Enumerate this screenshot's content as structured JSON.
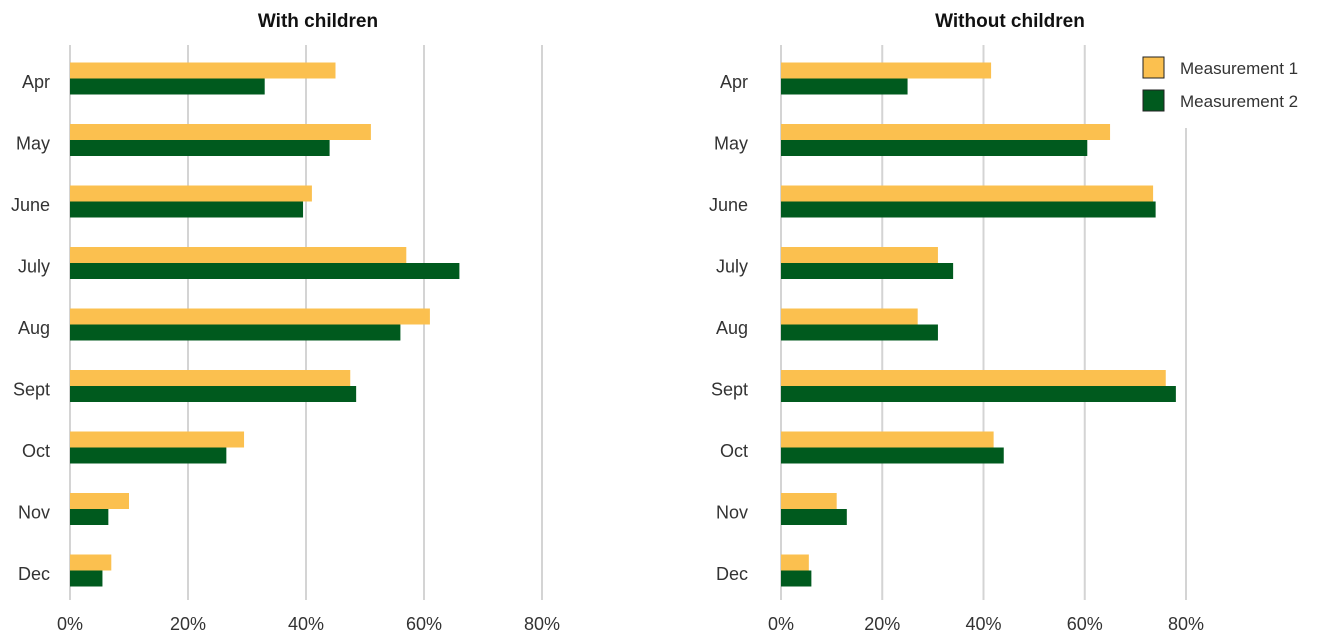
{
  "chart_data": [
    {
      "type": "bar",
      "orientation": "horizontal",
      "title": "With children",
      "categories": [
        "Apr",
        "May",
        "June",
        "July",
        "Aug",
        "Sept",
        "Oct",
        "Nov",
        "Dec"
      ],
      "series": [
        {
          "name": "Measurement 1",
          "color": "#fbc04f",
          "values": [
            45,
            51,
            41,
            57,
            61,
            47.5,
            29.5,
            10,
            7
          ]
        },
        {
          "name": "Measurement 2",
          "color": "#005a1e",
          "values": [
            33,
            44,
            39.5,
            66,
            56,
            48.5,
            26.5,
            6.5,
            5.5
          ]
        }
      ],
      "xlim": [
        0,
        80
      ],
      "xticks": [
        "0%",
        "20%",
        "40%",
        "60%",
        "80%"
      ],
      "grid": true,
      "legend": false
    },
    {
      "type": "bar",
      "orientation": "horizontal",
      "title": "Without children",
      "categories": [
        "Apr",
        "May",
        "June",
        "July",
        "Aug",
        "Sept",
        "Oct",
        "Nov",
        "Dec"
      ],
      "series": [
        {
          "name": "Measurement 1",
          "color": "#fbc04f",
          "values": [
            41.5,
            65,
            73.5,
            31,
            27,
            76,
            42,
            11,
            5.5
          ]
        },
        {
          "name": "Measurement 2",
          "color": "#005a1e",
          "values": [
            25,
            60.5,
            74,
            34,
            31,
            78,
            44,
            13,
            6
          ]
        }
      ],
      "xlim": [
        0,
        80
      ],
      "xticks": [
        "0%",
        "20%",
        "40%",
        "60%",
        "80%"
      ],
      "grid": true,
      "legend": true,
      "legend_position": "top-right"
    }
  ],
  "legend": {
    "items": [
      {
        "label": "Measurement 1",
        "color": "#fbc04f"
      },
      {
        "label": "Measurement 2",
        "color": "#005a1e"
      }
    ]
  }
}
